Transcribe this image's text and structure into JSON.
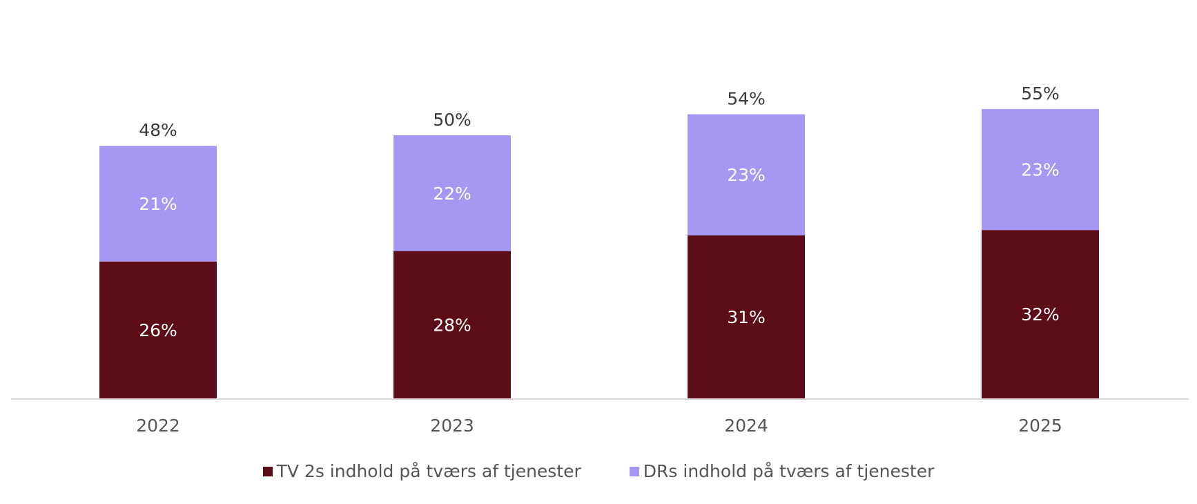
{
  "chart_data": {
    "type": "bar",
    "stacked": true,
    "categories": [
      "2022",
      "2023",
      "2024",
      "2025"
    ],
    "series": [
      {
        "name": "TV 2s indhold på tværs af tjenester",
        "values": [
          26,
          28,
          31,
          32
        ],
        "labels": [
          "26%",
          "28%",
          "31%",
          "32%"
        ],
        "color": "#5c0d18"
      },
      {
        "name": "DRs indhold på tværs af tjenester",
        "values": [
          21,
          22,
          23,
          23
        ],
        "labels": [
          "21%",
          "22%",
          "23%",
          "23%"
        ],
        "color": "#a498f2"
      }
    ],
    "totals": [
      48,
      50,
      54,
      55
    ],
    "total_labels": [
      "48%",
      "50%",
      "54%",
      "55%"
    ],
    "unit": "%",
    "ylim": [
      0,
      60
    ],
    "grid": false,
    "y_axis_visible": false,
    "legend_position": "bottom"
  }
}
